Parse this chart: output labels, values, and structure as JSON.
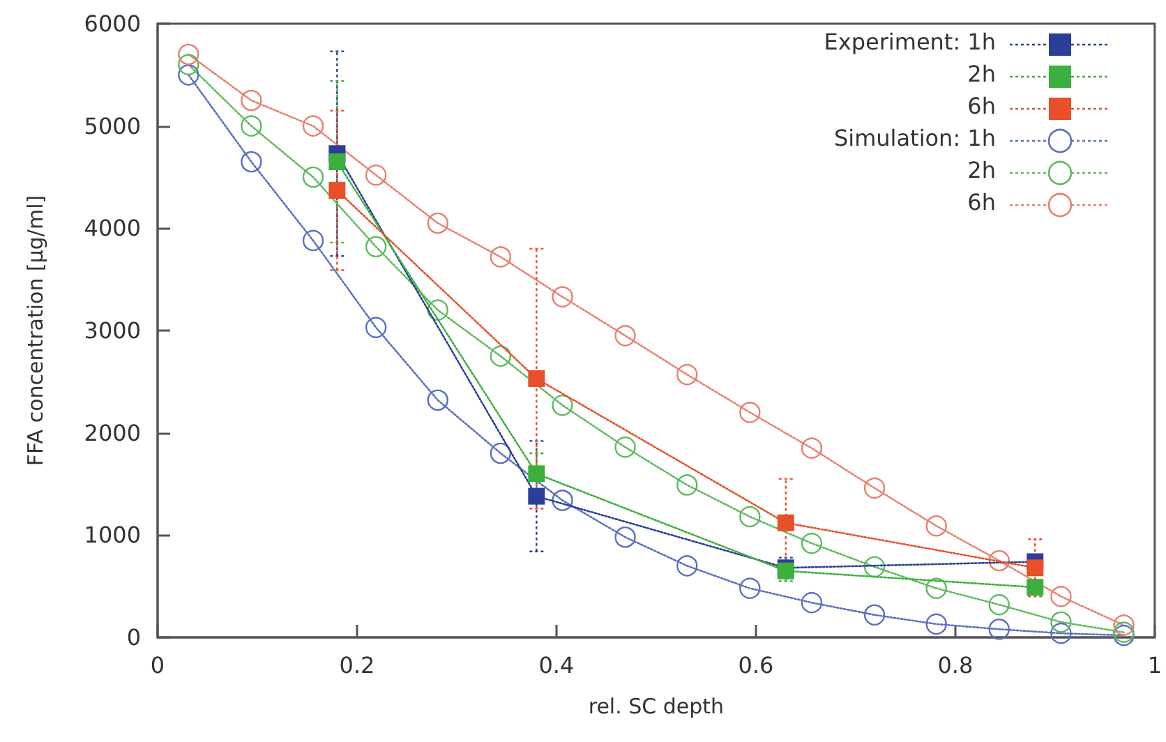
{
  "chart_data": {
    "type": "line",
    "xlabel": "rel. SC depth",
    "ylabel": "FFA concentration [µg/ml]",
    "xlim": [
      0,
      1
    ],
    "xticks": [
      0,
      0.2,
      0.4,
      0.6,
      0.8,
      1
    ],
    "ylim": [
      0,
      6000
    ],
    "yticks": [
      0,
      1000,
      2000,
      3000,
      4000,
      5000,
      6000
    ],
    "grid": false,
    "legend": "top right",
    "line_style": "dotted",
    "series": [
      {
        "name": "Experiment: 1h",
        "color": "#2b3f9a",
        "marker": "square",
        "x": [
          0.18,
          0.38,
          0.63,
          0.88
        ],
        "values": [
          4730,
          1380,
          680,
          740
        ],
        "errors": [
          1000,
          540,
          100,
          null
        ]
      },
      {
        "name": "2h",
        "color": "#3cb03c",
        "marker": "square",
        "x": [
          0.18,
          0.38,
          0.63,
          0.88
        ],
        "values": [
          4650,
          1600,
          650,
          490
        ],
        "errors": [
          790,
          200,
          100,
          null
        ]
      },
      {
        "name": "6h",
        "color": "#e8502a",
        "marker": "square",
        "x": [
          0.18,
          0.38,
          0.63,
          0.88
        ],
        "values": [
          4370,
          2530,
          1120,
          680
        ],
        "errors": [
          780,
          1270,
          430,
          280
        ]
      },
      {
        "name": "Simulation: 1h",
        "color": "#5b6fc0",
        "marker": "circle",
        "x": [
          0.031,
          0.094,
          0.156,
          0.219,
          0.281,
          0.344,
          0.406,
          0.469,
          0.531,
          0.594,
          0.656,
          0.719,
          0.781,
          0.844,
          0.906,
          0.969
        ],
        "values": [
          5500,
          4650,
          3880,
          3030,
          2320,
          1800,
          1340,
          980,
          700,
          480,
          340,
          220,
          130,
          80,
          40,
          20
        ]
      },
      {
        "name": "2h",
        "color": "#5dbb5d",
        "marker": "circle",
        "x": [
          0.031,
          0.094,
          0.156,
          0.219,
          0.281,
          0.344,
          0.406,
          0.469,
          0.531,
          0.594,
          0.656,
          0.719,
          0.781,
          0.844,
          0.906,
          0.969
        ],
        "values": [
          5600,
          5000,
          4500,
          3820,
          3200,
          2750,
          2270,
          1860,
          1490,
          1180,
          920,
          690,
          480,
          320,
          150,
          50
        ]
      },
      {
        "name": "6h",
        "color": "#e88070",
        "marker": "circle",
        "x": [
          0.031,
          0.094,
          0.156,
          0.219,
          0.281,
          0.344,
          0.406,
          0.469,
          0.531,
          0.594,
          0.656,
          0.719,
          0.781,
          0.844,
          0.906,
          0.969
        ],
        "values": [
          5700,
          5250,
          5000,
          4520,
          4050,
          3720,
          3330,
          2950,
          2570,
          2200,
          1850,
          1460,
          1090,
          750,
          400,
          120
        ]
      }
    ]
  }
}
